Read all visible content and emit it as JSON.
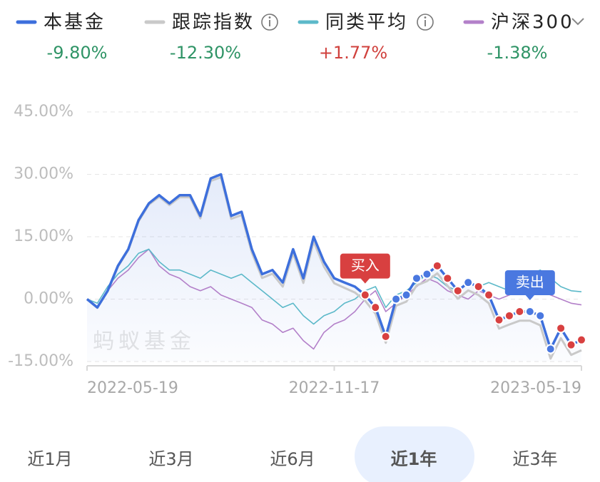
{
  "chart_data": {
    "type": "line",
    "categories": [
      "2022-05-19",
      null,
      null,
      null,
      null,
      null,
      null,
      null,
      null,
      null,
      null,
      null,
      null,
      null,
      null,
      null,
      null,
      null,
      null,
      null,
      null,
      null,
      null,
      null,
      "2022-11-17",
      null,
      null,
      null,
      null,
      null,
      null,
      null,
      null,
      null,
      null,
      null,
      null,
      null,
      null,
      null,
      null,
      null,
      null,
      null,
      null,
      null,
      null,
      null,
      "2023-05-19"
    ],
    "series": [
      {
        "name": "本基金",
        "color": "#3d6fdc",
        "return": {
          "value": -9.8,
          "label": "-9.80%"
        },
        "values": [
          0,
          -2,
          2,
          8,
          12,
          19,
          23,
          25,
          23,
          25,
          25,
          20,
          29,
          30,
          20,
          21,
          12,
          6,
          7,
          4,
          12,
          5,
          15,
          9,
          5,
          4,
          3,
          1,
          -2,
          -9,
          0,
          1,
          5,
          6,
          8,
          5,
          2,
          4,
          3,
          1,
          -5,
          -4,
          -3,
          -3,
          -4,
          -12,
          -7,
          -11,
          -9.8
        ]
      },
      {
        "name": "跟踪指数",
        "color": "#c9c9c9",
        "return": {
          "value": -12.3,
          "label": "-12.30%"
        },
        "values": [
          0,
          -2.1,
          1.9,
          7.8,
          11.8,
          18.7,
          22.7,
          24.6,
          22.6,
          24.5,
          24.5,
          19.4,
          28.4,
          29.3,
          19.3,
          20.2,
          11.2,
          5.1,
          6.1,
          3,
          11,
          3.9,
          13.9,
          7.8,
          3.8,
          2.7,
          1.6,
          -0.4,
          -3.5,
          -10.5,
          -1.6,
          -0.6,
          3.3,
          4.3,
          6.2,
          3.2,
          0.1,
          2.1,
          1,
          -1,
          -7.1,
          -6.1,
          -5.2,
          -5.2,
          -6.3,
          -14.3,
          -9.4,
          -13.4,
          -12.3
        ]
      },
      {
        "name": "同类平均",
        "color": "#5cb9c9",
        "return": {
          "value": 1.77,
          "label": "+1.77%"
        },
        "values": [
          0,
          -1,
          3,
          6,
          8,
          11,
          12,
          9,
          7,
          7,
          6,
          5,
          7,
          6,
          5,
          6,
          4,
          2,
          0,
          -2,
          -1,
          -4,
          -6,
          -4,
          -3,
          -1,
          0,
          2,
          3,
          -2,
          1,
          2,
          4,
          6,
          5,
          3,
          2,
          4,
          3,
          4,
          3,
          2,
          3,
          6,
          7,
          5,
          3,
          2,
          1.77
        ]
      },
      {
        "name": "沪深300",
        "color": "#b380c9",
        "return": {
          "value": -1.38,
          "label": "-1.38%"
        },
        "values": [
          0,
          -2,
          2,
          5,
          7,
          10,
          12,
          8,
          6,
          5,
          3,
          2,
          3,
          1,
          0,
          -1,
          -2,
          -5,
          -6,
          -8,
          -7,
          -10,
          -12,
          -8,
          -6,
          -5,
          -3,
          0,
          2,
          -3,
          -1,
          1,
          3,
          5,
          4,
          2,
          1,
          0,
          2,
          1,
          0,
          1,
          2,
          1,
          2,
          1,
          0,
          -1,
          -1.38
        ]
      }
    ],
    "ylim": [
      -15,
      45
    ],
    "yticks": [
      {
        "value": -15,
        "label": "-15.00%"
      },
      {
        "value": 0,
        "label": "0.00%"
      },
      {
        "value": 15,
        "label": "15.00%"
      },
      {
        "value": 30,
        "label": "30.00%"
      },
      {
        "value": 45,
        "label": "45.00%"
      }
    ],
    "grid": true,
    "watermark": "蚂蚁基金",
    "trades": {
      "buy": {
        "label": "买入",
        "color": "#d84040",
        "label_at": 27,
        "points": [
          27,
          28,
          29,
          34,
          35,
          36,
          38,
          39,
          40,
          41,
          42,
          46,
          47,
          48
        ]
      },
      "sell": {
        "label": "卖出",
        "color": "#4a78e0",
        "label_at": 43,
        "points": [
          30,
          31,
          32,
          33,
          37,
          43,
          44,
          45
        ]
      }
    }
  },
  "tabs": {
    "items": [
      "近1月",
      "近3月",
      "近6月",
      "近1年",
      "近3年"
    ],
    "selected": 3
  }
}
